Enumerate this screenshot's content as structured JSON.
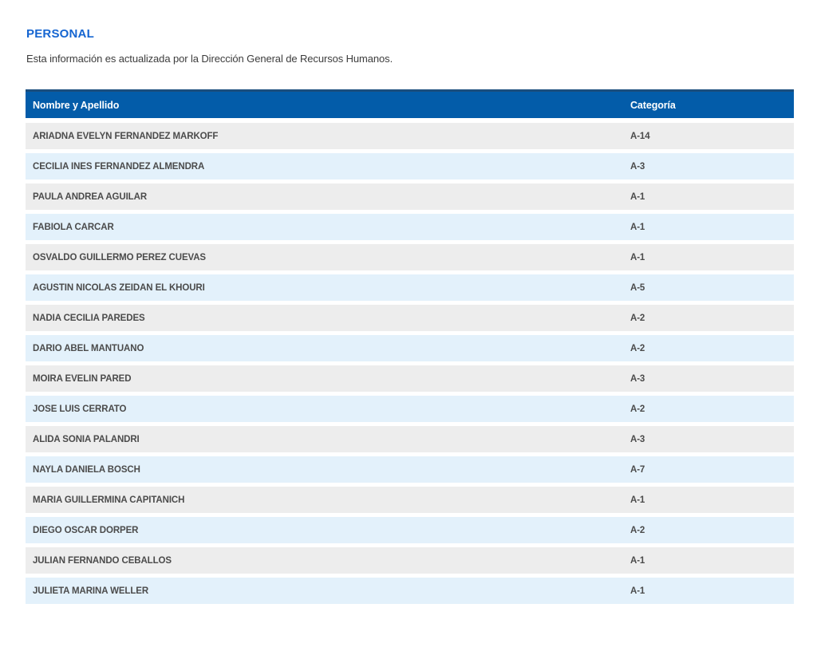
{
  "page": {
    "title": "PERSONAL",
    "subtitle": "Esta información es actualizada por la Dirección General de Recursos Humanos."
  },
  "table": {
    "header": {
      "name": "Nombre y Apellido",
      "category": "Categoría"
    },
    "rows": [
      {
        "name": "ARIADNA EVELYN FERNANDEZ MARKOFF",
        "category": "A-14"
      },
      {
        "name": "CECILIA INES FERNANDEZ ALMENDRA",
        "category": "A-3"
      },
      {
        "name": "PAULA ANDREA AGUILAR",
        "category": "A-1"
      },
      {
        "name": "FABIOLA CARCAR",
        "category": "A-1"
      },
      {
        "name": "OSVALDO GUILLERMO PEREZ CUEVAS",
        "category": "A-1"
      },
      {
        "name": "AGUSTIN NICOLAS ZEIDAN EL KHOURI",
        "category": "A-5"
      },
      {
        "name": "NADIA CECILIA PAREDES",
        "category": "A-2"
      },
      {
        "name": "DARIO ABEL MANTUANO",
        "category": "A-2"
      },
      {
        "name": "MOIRA EVELIN PARED",
        "category": "A-3"
      },
      {
        "name": "JOSE LUIS CERRATO",
        "category": "A-2"
      },
      {
        "name": "ALIDA SONIA PALANDRI",
        "category": "A-3"
      },
      {
        "name": "NAYLA DANIELA BOSCH",
        "category": "A-7"
      },
      {
        "name": "MARIA GUILLERMINA CAPITANICH",
        "category": "A-1"
      },
      {
        "name": "DIEGO OSCAR DORPER",
        "category": "A-2"
      },
      {
        "name": "JULIAN FERNANDO CEBALLOS",
        "category": "A-1"
      },
      {
        "name": "JULIETA MARINA WELLER",
        "category": "A-1"
      }
    ]
  },
  "colors": {
    "title_blue": "#1565d1",
    "header_bg": "#035ca9",
    "header_top_border": "#1b4e7e",
    "header_text": "#ffffff",
    "row_gray": "#ededed",
    "row_blue": "#e3f1fb",
    "row_text": "#4b4b4b",
    "subtitle_text": "#3c3c3c"
  }
}
